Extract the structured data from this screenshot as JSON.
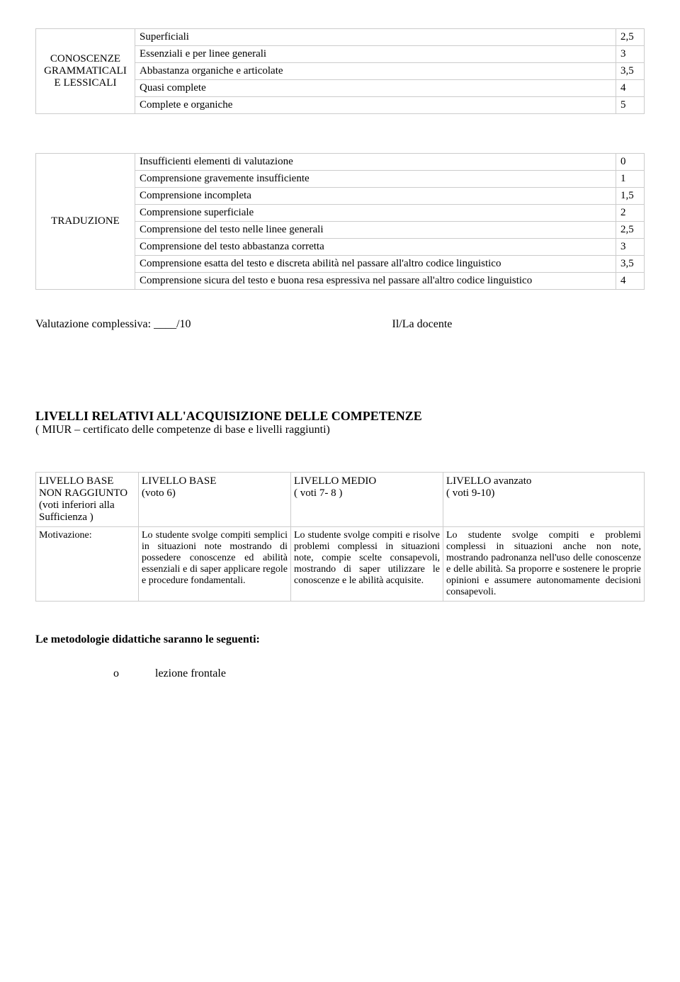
{
  "table1": {
    "label": "CONOSCENZE GRAMMATICALI E LESSICALI",
    "rows": [
      {
        "desc": "Superficiali",
        "score": "2,5"
      },
      {
        "desc": "Essenziali e per linee generali",
        "score": "3"
      },
      {
        "desc": "Abbastanza organiche e   articolate",
        "score": "3,5"
      },
      {
        "desc": "Quasi complete",
        "score": "4"
      },
      {
        "desc": "Complete e organiche",
        "score": "5"
      }
    ]
  },
  "table2": {
    "label": "TRADUZIONE",
    "rows": [
      {
        "desc": "Insufficienti elementi di   valutazione",
        "score": "0"
      },
      {
        "desc": "Comprensione gravemente   insufficiente",
        "score": "1"
      },
      {
        "desc": "Comprensione incompleta",
        "score": "1,5"
      },
      {
        "desc": "Comprensione superficiale",
        "score": "2"
      },
      {
        "desc": "Comprensione del testo nelle   linee generali",
        "score": "2,5"
      },
      {
        "desc": "Comprensione del testo   abbastanza corretta",
        "score": "3"
      },
      {
        "desc": "Comprensione esatta del testo e   discreta abilità nel passare all'altro codice linguistico",
        "score": "3,5"
      },
      {
        "desc": "Comprensione sicura del testo e   buona resa espressiva nel passare all'altro codice linguistico",
        "score": "4"
      }
    ]
  },
  "summary": {
    "label": "Valutazione complessiva: ____/10",
    "teacher": "Il/La docente"
  },
  "levels_heading": "LIVELLI  RELATIVI ALL'ACQUISIZIONE DELLE COMPETENZE",
  "levels_subtitle": "( MIUR – certificato delle competenze di base e livelli raggiunti)",
  "levels": {
    "head": {
      "c1a": "LIVELLO        BASE",
      "c1b": "NON RAGGIUNTO",
      "c1c": "(voti inferiori alla",
      "c1d": "Sufficienza )",
      "c2a": "LIVELLO BASE",
      "c2b": "(voto 6)",
      "c3a": "LIVELLO MEDIO",
      "c3b": "( voti 7- 8 )",
      "c4a": "LIVELLO avanzato",
      "c4b": "( voti 9-10)"
    },
    "row": {
      "motiv": "Motivazione:",
      "c2": "Lo studente svolge compiti semplici in situazioni note mostrando di possedere conoscenze ed abilità essenziali e di saper applicare regole e procedure fondamentali.",
      "c3": "Lo studente svolge compiti e risolve problemi complessi in situazioni note, compie scelte consapevoli, mostrando di saper utilizzare le conoscenze e le abilità acquisite.",
      "c4": "Lo studente svolge compiti e problemi complessi in situazioni    anche non note, mostrando padronanza nell'uso delle conoscenze e delle abilità. Sa proporre e sostenere le proprie opinioni e assumere autonomamente   decisioni consapevoli."
    }
  },
  "method_heading": "Le metodologie didattiche saranno le seguenti:",
  "bullet": {
    "marker": "o",
    "text": "lezione        frontale"
  }
}
